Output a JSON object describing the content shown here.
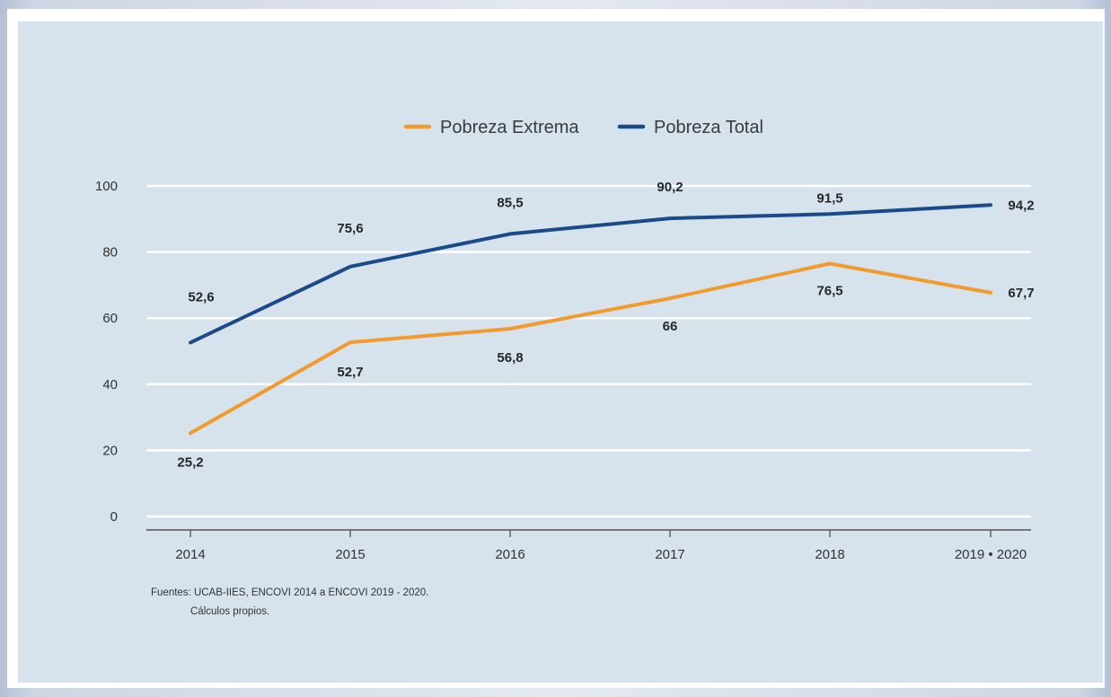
{
  "chart_data": {
    "type": "line",
    "categories": [
      "2014",
      "2015",
      "2016",
      "2017",
      "2018",
      "2019 • 2020"
    ],
    "series": [
      {
        "name": "Pobreza Extrema",
        "color": "#f39a2e",
        "values": [
          25.2,
          52.7,
          56.8,
          66,
          76.5,
          67.7
        ],
        "labels": [
          "25,2",
          "52,7",
          "56,8",
          "66",
          "76,5",
          "67,7"
        ]
      },
      {
        "name": "Pobreza Total",
        "color": "#1b4a8a",
        "values": [
          52.6,
          75.6,
          85.5,
          90.2,
          91.5,
          94.2
        ],
        "labels": [
          "52,6",
          "75,6",
          "85,5",
          "90,2",
          "91,5",
          "94,2"
        ]
      }
    ],
    "ylim": [
      0,
      100
    ],
    "yticks": [
      "0",
      "20",
      "40",
      "60",
      "80",
      "100"
    ],
    "grid": true,
    "legend_position": "top-center",
    "xlabel": "",
    "ylabel": ""
  },
  "source": {
    "line1": "Fuentes: UCAB-IIES, ENCOVI 2014 a ENCOVI 2019 - 2020.",
    "line2": "Cálculos propios."
  }
}
